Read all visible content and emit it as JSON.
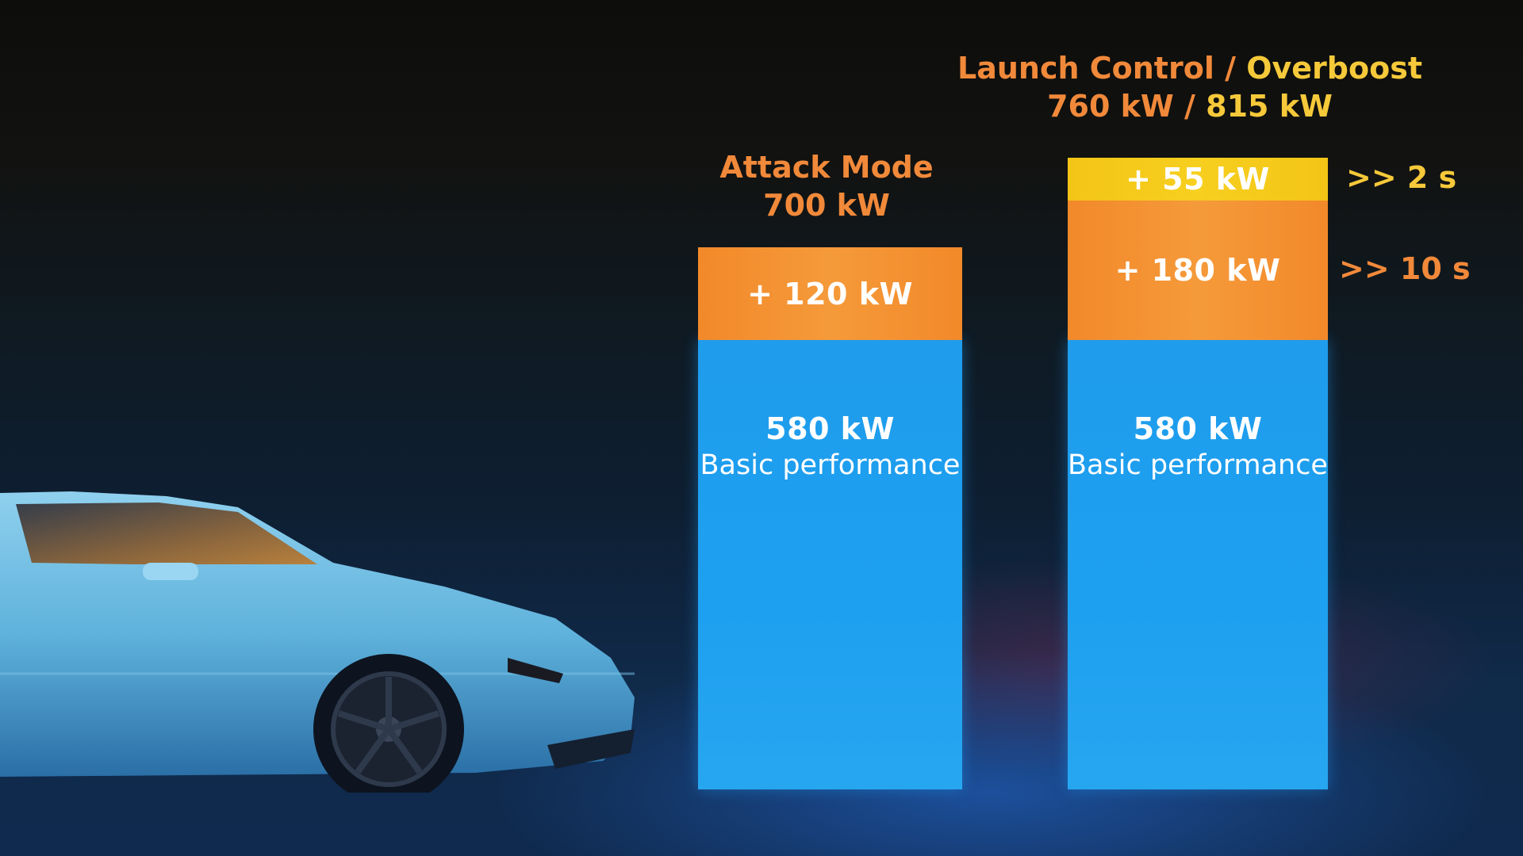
{
  "chart_data": {
    "type": "bar",
    "stacked": true,
    "unit": "kW",
    "bars": [
      {
        "title": "Attack Mode",
        "total": "700 kW",
        "segments": [
          {
            "value": 580,
            "label": "580 kW",
            "sublabel": "Basic performance",
            "color": "#1e9ff0"
          },
          {
            "value": 120,
            "label": "+ 120 kW",
            "color": "#f39030"
          }
        ]
      },
      {
        "title_a": "Launch Control",
        "title_sep": "/",
        "title_b": "Overboost",
        "total_a": "760 kW",
        "total_sep": "/",
        "total_b": "815 kW",
        "segments": [
          {
            "value": 580,
            "label": "580 kW",
            "sublabel": "Basic performance",
            "color": "#1e9ff0"
          },
          {
            "value": 180,
            "label": "+ 180 kW",
            "color": "#f39030",
            "duration": ">> 10 s"
          },
          {
            "value": 55,
            "label": "+ 55 kW",
            "color": "#f5c81a",
            "duration": ">> 2 s"
          }
        ]
      }
    ]
  },
  "colors": {
    "orange": "#f1893a",
    "yellow": "#f6c93a",
    "blue": "#1e9ff0"
  }
}
